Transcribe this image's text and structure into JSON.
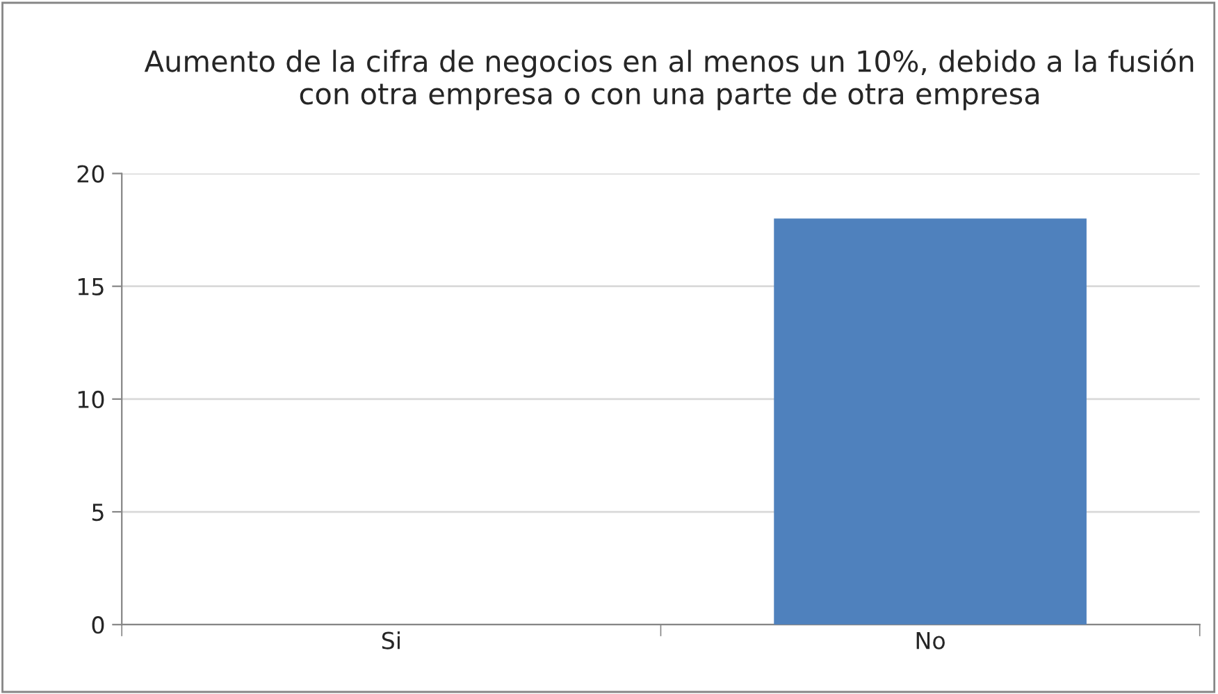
{
  "chart_data": {
    "type": "bar",
    "title": "Aumento de la cifra de negocios en al menos un 10%, debido a la fusión con otra empresa o con una parte de otra empresa",
    "categories": [
      "Si",
      "No"
    ],
    "values": [
      0,
      18
    ],
    "color": "#4f81bd",
    "ylim": [
      0,
      20
    ],
    "yticks": [
      0,
      5,
      10,
      15,
      20
    ],
    "grid": "y",
    "legend": false
  }
}
